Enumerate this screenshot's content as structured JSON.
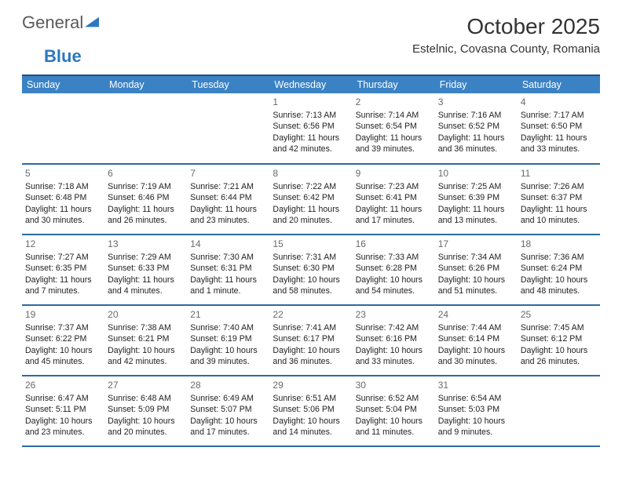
{
  "logo": {
    "part1": "General",
    "part2": "Blue"
  },
  "header": {
    "month_title": "October 2025",
    "location": "Estelnic, Covasna County, Romania"
  },
  "calendar": {
    "day_headers": [
      "Sunday",
      "Monday",
      "Tuesday",
      "Wednesday",
      "Thursday",
      "Friday",
      "Saturday"
    ],
    "header_bg": "#3b82c4",
    "header_fg": "#ffffff",
    "rule_color": "#2d6aa3",
    "font_size_body": 10.6,
    "font_size_daynum": 12,
    "weeks": [
      [
        null,
        null,
        null,
        {
          "n": "1",
          "sr": "7:13 AM",
          "ss": "6:56 PM",
          "dl": "11 hours and 42 minutes."
        },
        {
          "n": "2",
          "sr": "7:14 AM",
          "ss": "6:54 PM",
          "dl": "11 hours and 39 minutes."
        },
        {
          "n": "3",
          "sr": "7:16 AM",
          "ss": "6:52 PM",
          "dl": "11 hours and 36 minutes."
        },
        {
          "n": "4",
          "sr": "7:17 AM",
          "ss": "6:50 PM",
          "dl": "11 hours and 33 minutes."
        }
      ],
      [
        {
          "n": "5",
          "sr": "7:18 AM",
          "ss": "6:48 PM",
          "dl": "11 hours and 30 minutes."
        },
        {
          "n": "6",
          "sr": "7:19 AM",
          "ss": "6:46 PM",
          "dl": "11 hours and 26 minutes."
        },
        {
          "n": "7",
          "sr": "7:21 AM",
          "ss": "6:44 PM",
          "dl": "11 hours and 23 minutes."
        },
        {
          "n": "8",
          "sr": "7:22 AM",
          "ss": "6:42 PM",
          "dl": "11 hours and 20 minutes."
        },
        {
          "n": "9",
          "sr": "7:23 AM",
          "ss": "6:41 PM",
          "dl": "11 hours and 17 minutes."
        },
        {
          "n": "10",
          "sr": "7:25 AM",
          "ss": "6:39 PM",
          "dl": "11 hours and 13 minutes."
        },
        {
          "n": "11",
          "sr": "7:26 AM",
          "ss": "6:37 PM",
          "dl": "11 hours and 10 minutes."
        }
      ],
      [
        {
          "n": "12",
          "sr": "7:27 AM",
          "ss": "6:35 PM",
          "dl": "11 hours and 7 minutes."
        },
        {
          "n": "13",
          "sr": "7:29 AM",
          "ss": "6:33 PM",
          "dl": "11 hours and 4 minutes."
        },
        {
          "n": "14",
          "sr": "7:30 AM",
          "ss": "6:31 PM",
          "dl": "11 hours and 1 minute."
        },
        {
          "n": "15",
          "sr": "7:31 AM",
          "ss": "6:30 PM",
          "dl": "10 hours and 58 minutes."
        },
        {
          "n": "16",
          "sr": "7:33 AM",
          "ss": "6:28 PM",
          "dl": "10 hours and 54 minutes."
        },
        {
          "n": "17",
          "sr": "7:34 AM",
          "ss": "6:26 PM",
          "dl": "10 hours and 51 minutes."
        },
        {
          "n": "18",
          "sr": "7:36 AM",
          "ss": "6:24 PM",
          "dl": "10 hours and 48 minutes."
        }
      ],
      [
        {
          "n": "19",
          "sr": "7:37 AM",
          "ss": "6:22 PM",
          "dl": "10 hours and 45 minutes."
        },
        {
          "n": "20",
          "sr": "7:38 AM",
          "ss": "6:21 PM",
          "dl": "10 hours and 42 minutes."
        },
        {
          "n": "21",
          "sr": "7:40 AM",
          "ss": "6:19 PM",
          "dl": "10 hours and 39 minutes."
        },
        {
          "n": "22",
          "sr": "7:41 AM",
          "ss": "6:17 PM",
          "dl": "10 hours and 36 minutes."
        },
        {
          "n": "23",
          "sr": "7:42 AM",
          "ss": "6:16 PM",
          "dl": "10 hours and 33 minutes."
        },
        {
          "n": "24",
          "sr": "7:44 AM",
          "ss": "6:14 PM",
          "dl": "10 hours and 30 minutes."
        },
        {
          "n": "25",
          "sr": "7:45 AM",
          "ss": "6:12 PM",
          "dl": "10 hours and 26 minutes."
        }
      ],
      [
        {
          "n": "26",
          "sr": "6:47 AM",
          "ss": "5:11 PM",
          "dl": "10 hours and 23 minutes."
        },
        {
          "n": "27",
          "sr": "6:48 AM",
          "ss": "5:09 PM",
          "dl": "10 hours and 20 minutes."
        },
        {
          "n": "28",
          "sr": "6:49 AM",
          "ss": "5:07 PM",
          "dl": "10 hours and 17 minutes."
        },
        {
          "n": "29",
          "sr": "6:51 AM",
          "ss": "5:06 PM",
          "dl": "10 hours and 14 minutes."
        },
        {
          "n": "30",
          "sr": "6:52 AM",
          "ss": "5:04 PM",
          "dl": "10 hours and 11 minutes."
        },
        {
          "n": "31",
          "sr": "6:54 AM",
          "ss": "5:03 PM",
          "dl": "10 hours and 9 minutes."
        },
        null
      ]
    ]
  }
}
